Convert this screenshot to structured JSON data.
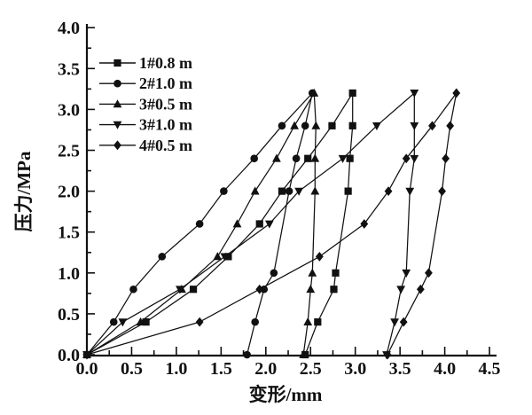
{
  "page": {
    "background": "#ffffff",
    "ink_color": "#111111"
  },
  "chart_data": {
    "type": "line",
    "title": "",
    "xlabel": "变形/mm",
    "ylabel": "压力/MPa",
    "xlim": [
      0,
      4.5
    ],
    "ylim": [
      0,
      4.0
    ],
    "xtick_step": 0.5,
    "ytick_step": 0.5,
    "minor_tick_step": 0.25,
    "xtick_labels": [
      "0.0",
      "0.5",
      "1.0",
      "1.5",
      "2.0",
      "2.5",
      "3.0",
      "3.5",
      "4.0",
      "4.5"
    ],
    "ytick_labels": [
      "0.0",
      "0.5",
      "1.0",
      "1.5",
      "2.0",
      "2.5",
      "3.0",
      "3.5",
      "4.0"
    ],
    "grid": false,
    "legend_position": "top-left-inside",
    "loading_pressures_MPa": [
      0,
      0.4,
      0.8,
      1.2,
      1.6,
      2.0,
      2.4,
      2.8,
      3.2
    ],
    "unloading_pressures_MPa": [
      2.8,
      2.4,
      2.0,
      1.0,
      0.8,
      0.4,
      0
    ],
    "series": [
      {
        "name": "1#0.8 m",
        "marker": "square",
        "loading": [
          [
            0,
            0
          ],
          [
            0.66,
            0.4
          ],
          [
            1.19,
            0.8
          ],
          [
            1.58,
            1.2
          ],
          [
            1.93,
            1.6
          ],
          [
            2.18,
            2.0
          ],
          [
            2.47,
            2.4
          ],
          [
            2.74,
            2.8
          ],
          [
            2.97,
            3.2
          ]
        ],
        "unloading": [
          [
            2.97,
            2.8
          ],
          [
            2.94,
            2.4
          ],
          [
            2.92,
            2.0
          ],
          [
            2.78,
            1.0
          ],
          [
            2.76,
            0.8
          ],
          [
            2.58,
            0.4
          ],
          [
            2.44,
            0
          ]
        ]
      },
      {
        "name": "2#1.0 m",
        "marker": "circle",
        "loading": [
          [
            0,
            0
          ],
          [
            0.3,
            0.4
          ],
          [
            0.52,
            0.8
          ],
          [
            0.84,
            1.2
          ],
          [
            1.26,
            1.6
          ],
          [
            1.53,
            2.0
          ],
          [
            1.87,
            2.4
          ],
          [
            2.18,
            2.8
          ],
          [
            2.52,
            3.2
          ]
        ],
        "unloading": [
          [
            2.44,
            2.8
          ],
          [
            2.34,
            2.4
          ],
          [
            2.26,
            2.0
          ],
          [
            2.09,
            1.0
          ],
          [
            1.98,
            0.8
          ],
          [
            1.88,
            0.4
          ],
          [
            1.79,
            0
          ]
        ]
      },
      {
        "name": "3#0.5 m",
        "marker": "triangle-up",
        "loading": [
          [
            0,
            0
          ],
          [
            0.6,
            0.4
          ],
          [
            1.06,
            0.8
          ],
          [
            1.46,
            1.2
          ],
          [
            1.68,
            1.6
          ],
          [
            1.88,
            2.0
          ],
          [
            2.12,
            2.4
          ],
          [
            2.32,
            2.8
          ],
          [
            2.54,
            3.2
          ]
        ],
        "unloading": [
          [
            2.56,
            2.8
          ],
          [
            2.55,
            2.4
          ],
          [
            2.55,
            2.0
          ],
          [
            2.52,
            1.0
          ],
          [
            2.5,
            0.8
          ],
          [
            2.47,
            0.4
          ],
          [
            2.42,
            0
          ]
        ]
      },
      {
        "name": "3#1.0 m",
        "marker": "triangle-down",
        "loading": [
          [
            0,
            0
          ],
          [
            0.4,
            0.4
          ],
          [
            1.04,
            0.8
          ],
          [
            1.54,
            1.2
          ],
          [
            2.04,
            1.6
          ],
          [
            2.37,
            2.0
          ],
          [
            2.86,
            2.4
          ],
          [
            3.24,
            2.8
          ],
          [
            3.66,
            3.2
          ]
        ],
        "unloading": [
          [
            3.66,
            2.8
          ],
          [
            3.66,
            2.4
          ],
          [
            3.61,
            2.0
          ],
          [
            3.57,
            1.0
          ],
          [
            3.51,
            0.8
          ],
          [
            3.44,
            0.4
          ],
          [
            3.35,
            0
          ]
        ]
      },
      {
        "name": "4#0.5 m",
        "marker": "diamond",
        "loading": [
          [
            0,
            0
          ],
          [
            1.26,
            0.4
          ],
          [
            1.93,
            0.8
          ],
          [
            2.6,
            1.2
          ],
          [
            3.1,
            1.6
          ],
          [
            3.37,
            2.0
          ],
          [
            3.57,
            2.4
          ],
          [
            3.86,
            2.8
          ],
          [
            4.13,
            3.2
          ]
        ],
        "unloading": [
          [
            4.06,
            2.8
          ],
          [
            4.01,
            2.4
          ],
          [
            3.97,
            2.0
          ],
          [
            3.82,
            1.0
          ],
          [
            3.73,
            0.8
          ],
          [
            3.54,
            0.4
          ],
          [
            3.36,
            0
          ]
        ]
      }
    ]
  }
}
